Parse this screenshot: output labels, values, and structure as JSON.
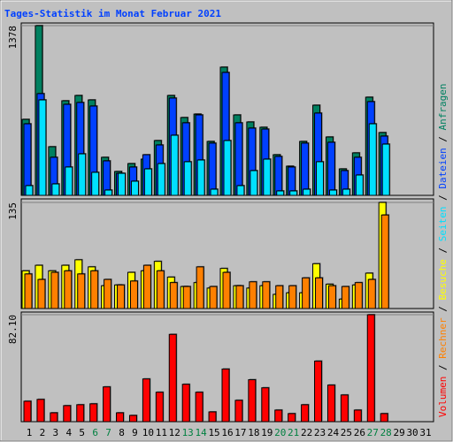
{
  "chart_data": {
    "type": "bar",
    "title": "Tages-Statistik im Monat Februar 2021",
    "categories": [
      "1",
      "2",
      "3",
      "4",
      "5",
      "6",
      "7",
      "8",
      "9",
      "10",
      "11",
      "12",
      "13",
      "14",
      "15",
      "16",
      "17",
      "18",
      "19",
      "20",
      "21",
      "22",
      "23",
      "24",
      "25",
      "26",
      "27",
      "28",
      "29",
      "30",
      "31"
    ],
    "label_colors": [
      "#000000",
      "#000000",
      "#000000",
      "#000000",
      "#000000",
      "#008040",
      "#008040",
      "#000000",
      "#000000",
      "#000000",
      "#000000",
      "#000000",
      "#008040",
      "#008040",
      "#000000",
      "#000000",
      "#000000",
      "#000000",
      "#000000",
      "#008040",
      "#008040",
      "#000000",
      "#000000",
      "#000000",
      "#000000",
      "#000000",
      "#008040",
      "#008040",
      "#000000",
      "#000000",
      "#000000"
    ],
    "legend_separator": " / ",
    "panels": [
      {
        "ylim": [
          0,
          1378
        ],
        "yticks": [
          1378
        ],
        "series": [
          {
            "name": "Anfragen",
            "color": "#008060",
            "values": [
              617,
              1378,
              395,
              768,
              811,
              775,
              309,
              194,
              258,
              294,
              445,
              811,
              632,
              660,
              438,
              1041,
              653,
              596,
              553,
              330,
              237,
              438,
              732,
              474,
              215,
              345,
              797,
              510,
              null,
              null,
              null
            ]
          },
          {
            "name": "Dateien",
            "color": "#0040ff",
            "values": [
              581,
              826,
              309,
              739,
              754,
              725,
              280,
              179,
              230,
              330,
              409,
              790,
              589,
              653,
              424,
              998,
              589,
              546,
              538,
              316,
              230,
              424,
              668,
              431,
              201,
              309,
              761,
              481,
              null,
              null,
              null
            ]
          },
          {
            "name": "Seiten",
            "color": "#00e0ff",
            "values": [
              79,
              775,
              93,
              230,
              337,
              187,
              43,
              179,
              115,
              215,
              258,
              488,
              273,
              287,
              50,
              445,
              79,
              201,
              294,
              36,
              36,
              50,
              273,
              43,
              50,
              165,
              581,
              416,
              null,
              null,
              null
            ]
          }
        ]
      },
      {
        "ylim": [
          0,
          135
        ],
        "yticks": [
          135
        ],
        "series": [
          {
            "name": "Besuche",
            "color": "#ffff00",
            "values": [
              48,
              55,
              48,
              55,
              62,
              53,
              29,
              30,
              46,
              48,
              60,
              40,
              28,
              33,
              26,
              51,
              29,
              26,
              29,
              18,
              20,
              20,
              57,
              31,
              12,
              30,
              45,
              135,
              null,
              null,
              null
            ]
          },
          {
            "name": "Rechner",
            "color": "#ff8000",
            "values": [
              44,
              37,
              46,
              48,
              44,
              48,
              37,
              30,
              35,
              55,
              48,
              33,
              28,
              53,
              28,
              46,
              29,
              34,
              34,
              29,
              29,
              39,
              39,
              29,
              28,
              33,
              37,
              119,
              null,
              null,
              null
            ]
          }
        ]
      },
      {
        "ylim": [
          0,
          82.1
        ],
        "yticks": [
          {
            "value": 82.1,
            "label": "82.10"
          }
        ],
        "series": [
          {
            "name": "Volumen",
            "color": "#ff0000",
            "values": [
              15.7,
              17.1,
              6.8,
              12.3,
              13.0,
              13.7,
              26.7,
              6.8,
              4.8,
              32.8,
              22.6,
              67.0,
              28.7,
              22.6,
              7.5,
              40.4,
              16.4,
              32.2,
              26.0,
              8.9,
              6.2,
              13.0,
              46.5,
              28.1,
              20.5,
              8.9,
              82.1,
              6.2,
              null,
              null,
              null
            ]
          }
        ]
      }
    ]
  }
}
